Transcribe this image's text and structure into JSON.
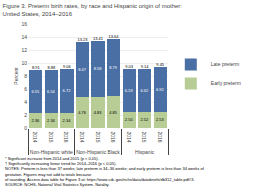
{
  "chart_data": {
    "type": "bar",
    "title": "Figure 3. Preterm birth rates, by race and Hispanic origin of mother: United States, 2014–2016",
    "categories": [
      [
        "Non-Hispanic white",
        "2014"
      ],
      [
        "Non-Hispanic white",
        "2015"
      ],
      [
        "Non-Hispanic white",
        "2016"
      ],
      [
        "Non-Hispanic Black",
        "2014"
      ],
      [
        "Non-Hispanic Black",
        "2015"
      ],
      [
        "Non-Hispanic Black",
        "2016"
      ],
      [
        "Hispanic",
        "2014"
      ],
      [
        "Hispanic",
        "2015"
      ],
      [
        "Hispanic",
        "2016"
      ]
    ],
    "series": [
      {
        "name": "Early preterm",
        "color": "#b8cc96",
        "values": [
          2.36,
          2.34,
          2.34,
          4.76,
          4.83,
          4.85,
          2.5,
          2.52,
          2.53
        ],
        "value_labels": [
          "2.36",
          "2.34",
          "2.34",
          "4.76",
          "4.83",
          "4.85",
          "2.50",
          "2.52",
          "2.53"
        ]
      },
      {
        "name": "Late preterm",
        "color": "#4a6fa5",
        "values": [
          6.55,
          6.54,
          6.72,
          8.47,
          8.58,
          8.79,
          6.53,
          6.62,
          6.92
        ]
      }
    ],
    "totals": [
      8.91,
      8.88,
      9.06,
      13.23,
      13.41,
      13.64,
      9.03,
      9.14,
      9.45
    ],
    "ylabel": "Percent",
    "ylim": [
      0,
      16
    ],
    "yticks": [
      0,
      2,
      4,
      6,
      8,
      10,
      12,
      14,
      16
    ],
    "grid": true,
    "stacked": true,
    "data_labels": true,
    "legend": "right",
    "footnotes": [
      "* Significant increase from 2014 and 2015 (p < 0.05).",
      "† Significantly increasing linear trend for 2014–2016 (p < 0.05).",
      "NOTES: Preterm is less than 37 weeks; late preterm is 34–36 weeks; and early preterm is less than 34 weeks of gestation. Figures may not add to totals because",
      "of rounding. Access data table for Figure 3 at: https://www.cdc.gov/nchs/data/databriefs/db312_table.pdf#3.",
      "SOURCE: NCHS, National Vital Statistics System, Natality."
    ]
  }
}
